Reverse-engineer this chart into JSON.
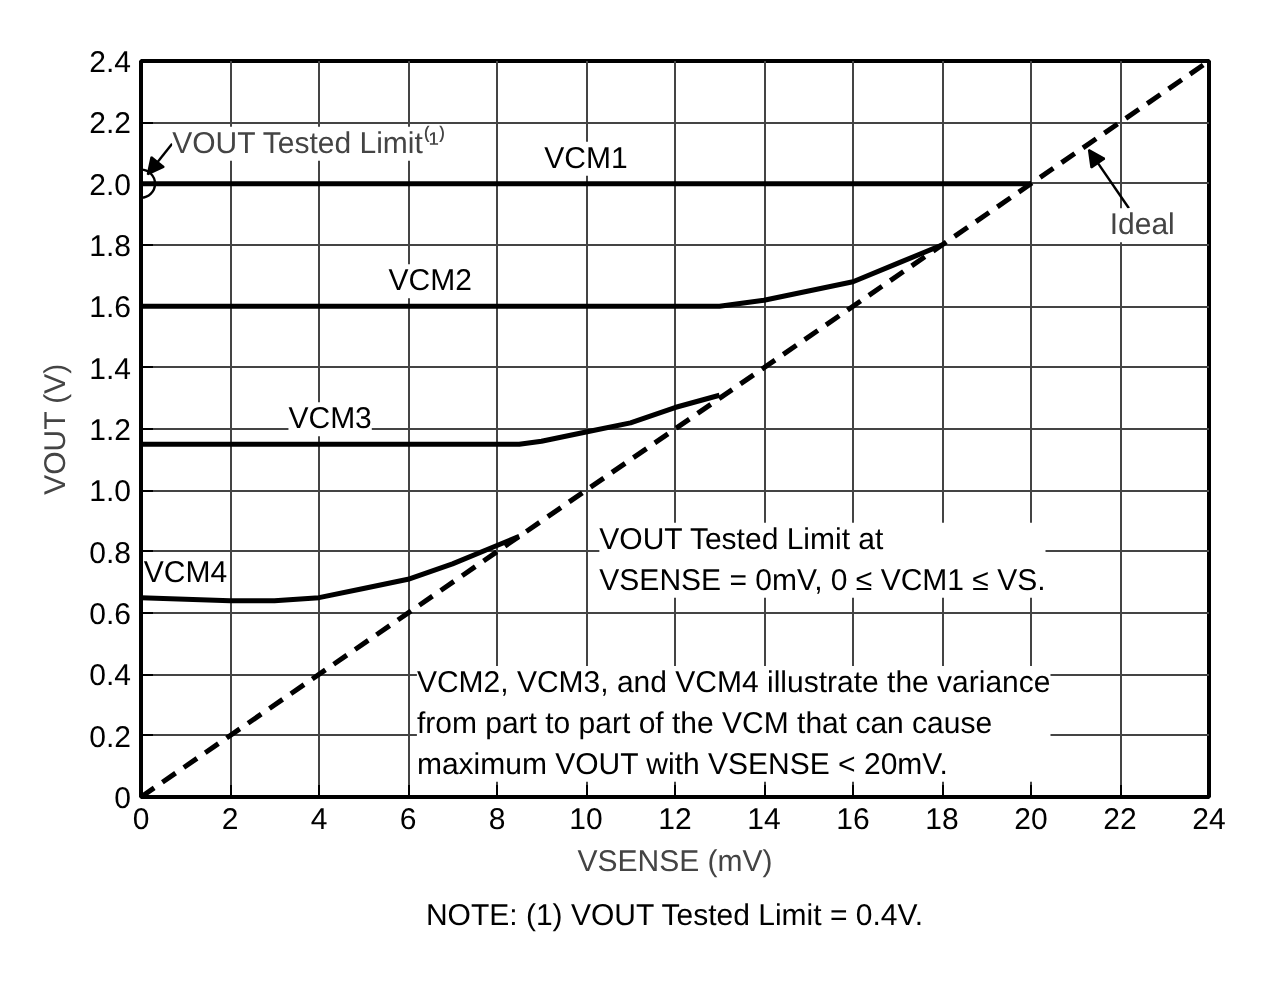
{
  "chart_data": {
    "type": "line",
    "xlabel": "VSENSE (mV)",
    "ylabel": "VOUT (V)",
    "xlim": [
      0,
      24
    ],
    "ylim": [
      0,
      2.4
    ],
    "xticks": [
      0,
      2,
      4,
      6,
      8,
      10,
      12,
      14,
      16,
      18,
      20,
      22,
      24
    ],
    "yticks": [
      {
        "value": 0,
        "label": "0"
      },
      {
        "value": 0.2,
        "label": "0.2"
      },
      {
        "value": 0.4,
        "label": "0.4"
      },
      {
        "value": 0.6,
        "label": "0.6"
      },
      {
        "value": 0.8,
        "label": "0.8"
      },
      {
        "value": 1.0,
        "label": "1.0"
      },
      {
        "value": 1.2,
        "label": "1.2"
      },
      {
        "value": 1.4,
        "label": "1.4"
      },
      {
        "value": 1.6,
        "label": "1.6"
      },
      {
        "value": 1.8,
        "label": "1.8"
      },
      {
        "value": 2.0,
        "label": "2.0"
      },
      {
        "value": 2.2,
        "label": "2.2"
      },
      {
        "value": 2.4,
        "label": "2.4"
      }
    ],
    "grid": true,
    "line_style": "solid",
    "series": [
      {
        "name": "VCM1",
        "color": "#000000",
        "x": [
          0,
          20
        ],
        "values": [
          2.0,
          2.0
        ]
      },
      {
        "name": "VCM2",
        "color": "#000000",
        "x": [
          0,
          13,
          14,
          15,
          16,
          17,
          18
        ],
        "values": [
          1.6,
          1.6,
          1.62,
          1.65,
          1.68,
          1.74,
          1.8
        ]
      },
      {
        "name": "VCM3",
        "color": "#000000",
        "x": [
          0,
          8.5,
          9,
          10,
          11,
          12,
          13
        ],
        "values": [
          1.15,
          1.15,
          1.16,
          1.19,
          1.22,
          1.27,
          1.31
        ]
      },
      {
        "name": "VCM4",
        "color": "#000000",
        "x": [
          0,
          2,
          3,
          4,
          5,
          6,
          7,
          8,
          8.5
        ],
        "values": [
          0.65,
          0.64,
          0.64,
          0.65,
          0.68,
          0.71,
          0.76,
          0.82,
          0.85
        ]
      },
      {
        "color": "#000000",
        "line_style": "dashed",
        "x": [
          0,
          24
        ],
        "values": [
          0,
          2.4
        ]
      }
    ],
    "annotations": [
      {
        "text": "VOUT Tested Limit⁽¹⁾",
        "x": 0,
        "y": 2.0
      },
      {
        "text": "Ideal",
        "x": 21.2,
        "y": 2.12
      },
      "VOUT Tested Limit at\nVSENSE = 0mV, 0 ≤ VCM1 ≤ VS.",
      "VCM2, VCM3, and VCM4 illustrate the variance\nfrom part to part of the VCM that can cause\nmaximum VOUT with VSENSE < 20mV.",
      "NOTE: (1) VOUT Tested Limit = 0.4V."
    ]
  }
}
